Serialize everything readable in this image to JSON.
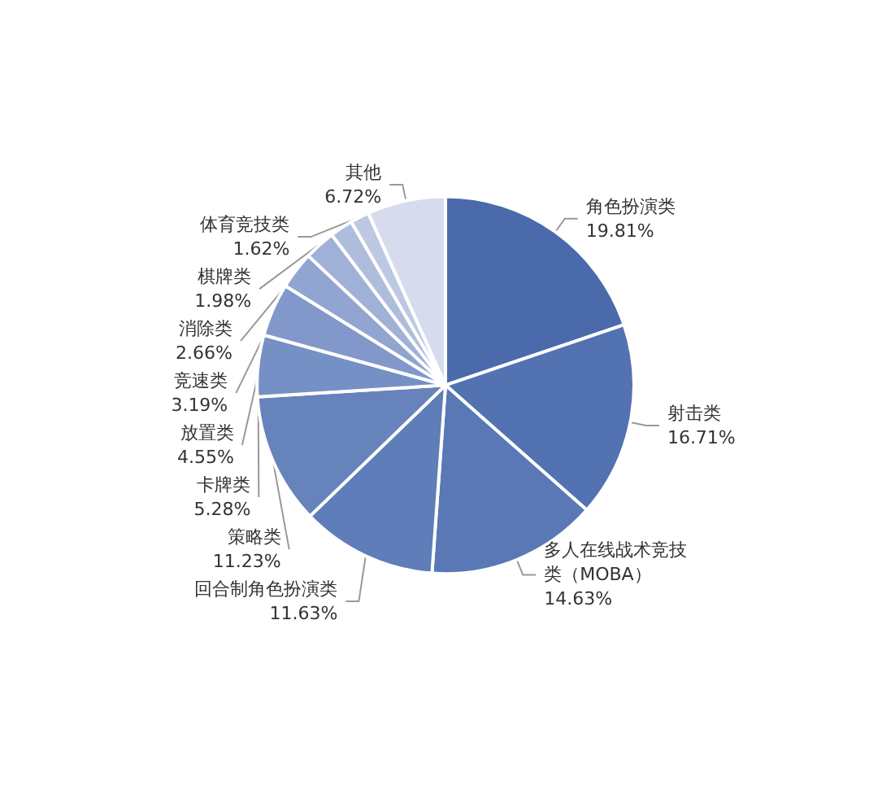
{
  "chart_data": {
    "type": "pie",
    "categories": [
      "角色扮演类",
      "射击类",
      "多人在线战术竞技类（MOBA）",
      "回合制角色扮演类",
      "策略类",
      "卡牌类",
      "放置类",
      "竞速类",
      "消除类",
      "棋牌类",
      "体育竞技类",
      "其他"
    ],
    "values": [
      19.81,
      16.71,
      14.63,
      11.63,
      11.23,
      5.28,
      4.55,
      3.19,
      2.66,
      1.98,
      1.62,
      6.72
    ],
    "value_labels": [
      "19.81%",
      "16.71%",
      "14.63%",
      "11.63%",
      "11.23%",
      "5.28%",
      "4.55%",
      "3.19%",
      "2.66%",
      "1.98%",
      "1.62%",
      "6.72%"
    ],
    "colors": [
      "#4a6aab",
      "#5272b1",
      "#5978b5",
      "#5f7db8",
      "#6683bc",
      "#7590c4",
      "#8298ca",
      "#91a5d0",
      "#a0b1d7",
      "#afbddd",
      "#bdc8e3",
      "#d6dcee"
    ],
    "legend": false
  }
}
